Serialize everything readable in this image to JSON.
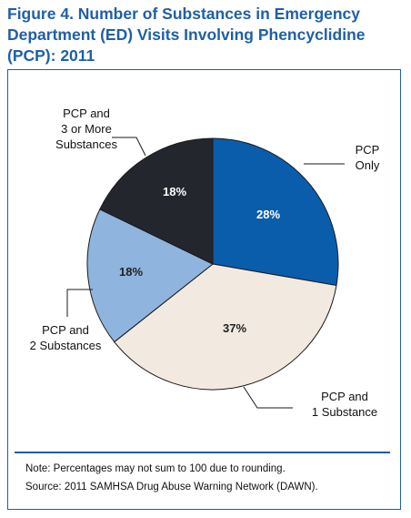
{
  "title": "Figure 4. Number of Substances in Emergency\nDepartment (ED) Visits Involving Phencyclidine\n(PCP): 2011",
  "chart_data": {
    "type": "pie",
    "slices": [
      {
        "label": [
          "PCP",
          "Only"
        ],
        "value": 28,
        "display": "28%",
        "color": "#0a5dab",
        "text_color": "#ffffff"
      },
      {
        "label": [
          "PCP and",
          "1 Substance"
        ],
        "value": 37,
        "display": "37%",
        "color": "#f2eae0",
        "text_color": "#222222"
      },
      {
        "label": [
          "PCP and",
          "2 Substances"
        ],
        "value": 18,
        "display": "18%",
        "color": "#8fb4dd",
        "text_color": "#222222"
      },
      {
        "label": [
          "PCP and",
          "3 or More",
          "Substances"
        ],
        "value": 18,
        "display": "18%",
        "color": "#24262e",
        "text_color": "#ffffff"
      }
    ]
  },
  "notes": {
    "note": "Note: Percentages may not sum to 100 due to rounding.",
    "source": "Source: 2011 SAMHSA Drug Abuse Warning Network (DAWN)."
  }
}
